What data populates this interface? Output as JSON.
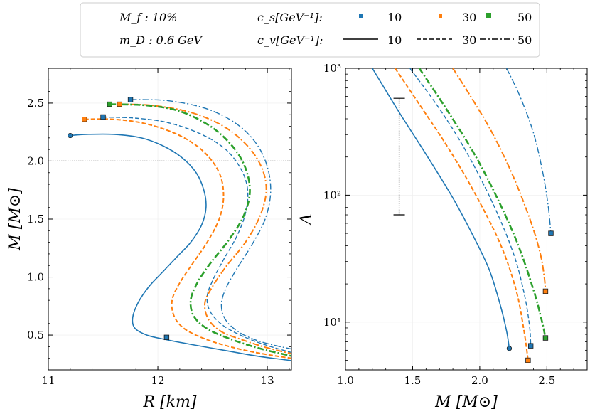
{
  "legend": {
    "mf_label": "M_f : 10%",
    "md_label": "m_D : 0.6 GeV",
    "cs_label": "c_s[GeV⁻¹]:",
    "cv_label": "c_v[GeV⁻¹]:",
    "cs_values": [
      "10",
      "30",
      "50"
    ],
    "cv_values": [
      "10",
      "30",
      "50"
    ]
  },
  "colors": {
    "c10": "#1f77b4",
    "c30": "#ff7f0e",
    "c50": "#2ca02c"
  },
  "chart_data": [
    {
      "type": "line",
      "panel": "left",
      "xlabel": "R [km]",
      "ylabel": "M [M⊙]",
      "xlim": [
        11.0,
        13.22
      ],
      "ylim": [
        0.2,
        2.8
      ],
      "xticks": [
        11,
        12,
        13
      ],
      "yticks": [
        0.5,
        1.0,
        1.5,
        2.0,
        2.5
      ],
      "hline": 2.0,
      "series": [
        {
          "name": "cs=10,cv=10",
          "color": "c10",
          "dash": "solid",
          "width": 1.6,
          "marker": "circle",
          "markerAt": [
            11.2,
            2.22
          ],
          "squareAt": [
            12.08,
            0.48
          ],
          "x": [
            11.2,
            11.35,
            11.6,
            11.85,
            12.05,
            12.22,
            12.35,
            12.42,
            12.44,
            12.4,
            12.3,
            12.18,
            12.05,
            11.92,
            11.82,
            11.77,
            11.79,
            11.9,
            12.08,
            12.3,
            12.6,
            12.9,
            13.22
          ],
          "y": [
            2.22,
            2.23,
            2.23,
            2.2,
            2.13,
            2.03,
            1.9,
            1.75,
            1.6,
            1.45,
            1.3,
            1.18,
            1.05,
            0.92,
            0.78,
            0.65,
            0.56,
            0.5,
            0.46,
            0.42,
            0.37,
            0.32,
            0.28
          ]
        },
        {
          "name": "cs=10,cv=30",
          "color": "c10",
          "dash": "dash",
          "width": 1.4,
          "marker": "square",
          "markerAt": [
            11.5,
            2.38
          ],
          "squareAt": null,
          "x": [
            11.5,
            11.8,
            12.1,
            12.4,
            12.62,
            12.76,
            12.82,
            12.8,
            12.72,
            12.6,
            12.5,
            12.45,
            12.48,
            12.6,
            12.8,
            13.0,
            13.22
          ],
          "y": [
            2.38,
            2.37,
            2.33,
            2.23,
            2.1,
            1.93,
            1.75,
            1.55,
            1.35,
            1.15,
            0.97,
            0.83,
            0.7,
            0.58,
            0.48,
            0.41,
            0.35
          ]
        },
        {
          "name": "cs=10,cv=50",
          "color": "c10",
          "dash": "dashdot",
          "width": 1.4,
          "marker": "square",
          "markerAt": [
            11.75,
            2.53
          ],
          "squareAt": null,
          "x": [
            11.75,
            12.1,
            12.45,
            12.72,
            12.9,
            13.0,
            13.03,
            12.98,
            12.86,
            12.72,
            12.62,
            12.58,
            12.62,
            12.75,
            12.95,
            13.22
          ],
          "y": [
            2.53,
            2.52,
            2.45,
            2.32,
            2.15,
            1.95,
            1.73,
            1.5,
            1.28,
            1.07,
            0.9,
            0.76,
            0.63,
            0.52,
            0.44,
            0.38
          ]
        },
        {
          "name": "cs=30,cv=30",
          "color": "c30",
          "dash": "dash",
          "width": 2.0,
          "marker": "square",
          "markerAt": [
            11.33,
            2.36
          ],
          "squareAt": null,
          "x": [
            11.33,
            11.6,
            11.9,
            12.2,
            12.42,
            12.56,
            12.6,
            12.56,
            12.45,
            12.32,
            12.2,
            12.13,
            12.15,
            12.25,
            12.45,
            12.7,
            12.95,
            13.22
          ],
          "y": [
            2.36,
            2.36,
            2.32,
            2.22,
            2.08,
            1.9,
            1.7,
            1.5,
            1.3,
            1.12,
            0.95,
            0.8,
            0.66,
            0.55,
            0.46,
            0.39,
            0.34,
            0.3
          ]
        },
        {
          "name": "cs=30,cv=50",
          "color": "c30",
          "dash": "dashdot",
          "width": 2.0,
          "marker": "square",
          "markerAt": [
            11.65,
            2.49
          ],
          "squareAt": null,
          "x": [
            11.65,
            11.95,
            12.3,
            12.6,
            12.82,
            12.95,
            12.99,
            12.93,
            12.8,
            12.63,
            12.5,
            12.43,
            12.46,
            12.58,
            12.8,
            13.0,
            13.22
          ],
          "y": [
            2.49,
            2.48,
            2.42,
            2.3,
            2.13,
            1.94,
            1.74,
            1.52,
            1.3,
            1.1,
            0.92,
            0.78,
            0.64,
            0.53,
            0.45,
            0.39,
            0.34
          ]
        },
        {
          "name": "cs=50,cv=50",
          "color": "c50",
          "dash": "dashdot",
          "width": 2.6,
          "marker": "square",
          "markerAt": [
            11.56,
            2.49
          ],
          "squareAt": null,
          "x": [
            11.56,
            11.9,
            12.2,
            12.48,
            12.68,
            12.8,
            12.84,
            12.78,
            12.64,
            12.48,
            12.36,
            12.3,
            12.33,
            12.46,
            12.68,
            12.95,
            13.22
          ],
          "y": [
            2.49,
            2.48,
            2.43,
            2.3,
            2.13,
            1.94,
            1.73,
            1.52,
            1.31,
            1.12,
            0.95,
            0.8,
            0.66,
            0.55,
            0.46,
            0.38,
            0.32
          ]
        }
      ]
    },
    {
      "type": "line",
      "panel": "right",
      "yscale": "log",
      "xlabel": "M [M⊙]",
      "ylabel": "Λ",
      "xlim": [
        1.0,
        2.8
      ],
      "ylim": [
        4.2,
        1000
      ],
      "xticks": [
        1.0,
        1.5,
        2.0,
        2.5
      ],
      "yticks": [
        10,
        100,
        1000
      ],
      "ytick_labels": [
        "10¹",
        "10²",
        "10³"
      ],
      "errorbar": {
        "x": 1.4,
        "ylow": 70,
        "yhigh": 580
      },
      "series": [
        {
          "name": "cs=10,cv=10",
          "color": "c10",
          "dash": "solid",
          "width": 1.6,
          "marker": "circle",
          "markerAt": [
            2.22,
            6.2
          ],
          "x": [
            1.2,
            1.4,
            1.6,
            1.8,
            1.95,
            2.07,
            2.15,
            2.2,
            2.22
          ],
          "y": [
            1000,
            450,
            210,
            95,
            48,
            26,
            14,
            8.5,
            6.2
          ]
        },
        {
          "name": "cs=10,cv=30",
          "color": "c10",
          "dash": "dash",
          "width": 1.4,
          "marker": "square",
          "markerAt": [
            2.38,
            6.5
          ],
          "x": [
            1.48,
            1.7,
            1.9,
            2.1,
            2.25,
            2.33,
            2.37,
            2.38
          ],
          "y": [
            1000,
            480,
            220,
            85,
            35,
            17,
            9.5,
            6.5
          ]
        },
        {
          "name": "cs=10,cv=50",
          "color": "c10",
          "dash": "dashdot",
          "width": 1.4,
          "marker": "square",
          "markerAt": [
            2.53,
            50
          ],
          "x": [
            2.2,
            2.3,
            2.4,
            2.47,
            2.51,
            2.53
          ],
          "y": [
            1000,
            600,
            310,
            150,
            82,
            50
          ]
        },
        {
          "name": "cs=30,cv=30",
          "color": "c30",
          "dash": "dash",
          "width": 2.0,
          "marker": "square",
          "markerAt": [
            2.36,
            5.0
          ],
          "x": [
            1.37,
            1.55,
            1.75,
            1.95,
            2.15,
            2.27,
            2.33,
            2.36
          ],
          "y": [
            1000,
            520,
            250,
            110,
            42,
            18,
            8.5,
            5.0
          ]
        },
        {
          "name": "cs=30,cv=50",
          "color": "c30",
          "dash": "dashdot",
          "width": 2.0,
          "marker": "square",
          "markerAt": [
            2.49,
            17.5
          ],
          "x": [
            1.8,
            1.95,
            2.1,
            2.25,
            2.38,
            2.45,
            2.48,
            2.49
          ],
          "y": [
            1000,
            560,
            300,
            140,
            62,
            35,
            23,
            17.5
          ]
        },
        {
          "name": "cs=50,cv=50",
          "color": "c50",
          "dash": "dashdot",
          "width": 2.6,
          "marker": "square",
          "markerAt": [
            2.49,
            7.5
          ],
          "x": [
            1.55,
            1.75,
            1.95,
            2.12,
            2.28,
            2.4,
            2.46,
            2.49
          ],
          "y": [
            1000,
            480,
            220,
            100,
            42,
            18,
            10.5,
            7.5
          ]
        }
      ]
    }
  ]
}
